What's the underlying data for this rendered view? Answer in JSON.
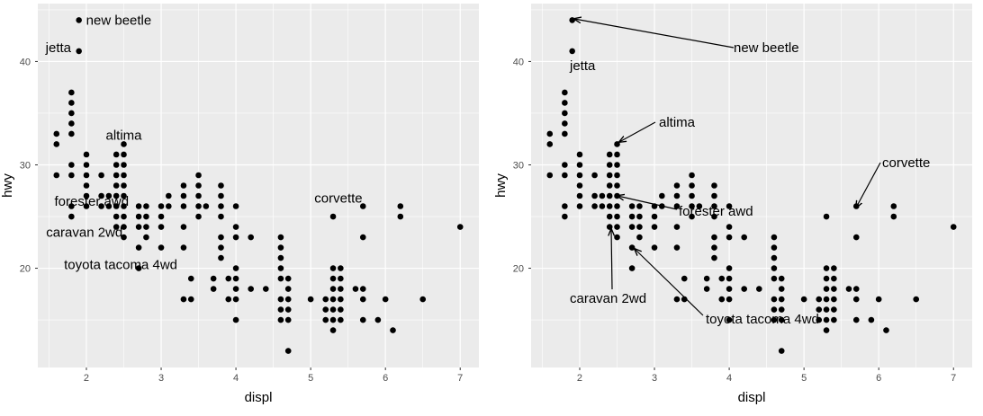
{
  "colors": {
    "panel_background": "#EBEBEB",
    "gridline_major": "#FFFFFF",
    "point": "#000000",
    "tick_label": "#4D4D4D",
    "arrow": "#000000"
  },
  "chart_data": [
    {
      "type": "scatter",
      "title": "",
      "xlabel": "displ",
      "ylabel": "hwy",
      "xlim": [
        1.35,
        7.25
      ],
      "ylim": [
        10.4,
        45.6
      ],
      "xticks": [
        "2",
        "3",
        "4",
        "5",
        "6",
        "7"
      ],
      "yticks": [
        "20",
        "30",
        "40"
      ],
      "grid": true,
      "legend": "none",
      "points": [
        [
          1.6,
          33
        ],
        [
          1.6,
          32
        ],
        [
          1.6,
          29
        ],
        [
          1.8,
          29
        ],
        [
          1.8,
          33
        ],
        [
          1.8,
          34
        ],
        [
          1.8,
          35
        ],
        [
          1.8,
          36
        ],
        [
          1.8,
          37
        ],
        [
          1.8,
          30
        ],
        [
          1.8,
          26
        ],
        [
          1.8,
          25
        ],
        [
          1.9,
          44
        ],
        [
          1.9,
          41
        ],
        [
          2.0,
          31
        ],
        [
          2.0,
          30
        ],
        [
          2.0,
          29
        ],
        [
          2.0,
          28
        ],
        [
          2.0,
          27
        ],
        [
          2.0,
          26
        ],
        [
          2.2,
          29
        ],
        [
          2.2,
          27
        ],
        [
          2.2,
          26
        ],
        [
          2.3,
          27
        ],
        [
          2.3,
          26
        ],
        [
          2.4,
          31
        ],
        [
          2.4,
          30
        ],
        [
          2.4,
          29
        ],
        [
          2.4,
          28
        ],
        [
          2.4,
          27
        ],
        [
          2.4,
          26
        ],
        [
          2.4,
          25
        ],
        [
          2.4,
          24
        ],
        [
          2.5,
          32
        ],
        [
          2.5,
          31
        ],
        [
          2.5,
          30
        ],
        [
          2.5,
          29
        ],
        [
          2.5,
          28
        ],
        [
          2.5,
          27
        ],
        [
          2.5,
          26
        ],
        [
          2.5,
          25
        ],
        [
          2.5,
          24
        ],
        [
          2.5,
          23
        ],
        [
          2.7,
          26
        ],
        [
          2.7,
          25
        ],
        [
          2.7,
          24
        ],
        [
          2.7,
          22
        ],
        [
          2.7,
          20
        ],
        [
          2.8,
          26
        ],
        [
          2.8,
          25
        ],
        [
          2.8,
          24
        ],
        [
          2.8,
          23
        ],
        [
          3.0,
          26
        ],
        [
          3.0,
          25
        ],
        [
          3.0,
          24
        ],
        [
          3.0,
          22
        ],
        [
          3.1,
          27
        ],
        [
          3.1,
          26
        ],
        [
          3.3,
          28
        ],
        [
          3.3,
          27
        ],
        [
          3.3,
          26
        ],
        [
          3.3,
          24
        ],
        [
          3.3,
          22
        ],
        [
          3.3,
          17
        ],
        [
          3.4,
          19
        ],
        [
          3.4,
          17
        ],
        [
          3.5,
          29
        ],
        [
          3.5,
          28
        ],
        [
          3.5,
          27
        ],
        [
          3.5,
          26
        ],
        [
          3.5,
          25
        ],
        [
          3.6,
          26
        ],
        [
          3.7,
          19
        ],
        [
          3.7,
          18
        ],
        [
          3.8,
          28
        ],
        [
          3.8,
          27
        ],
        [
          3.8,
          26
        ],
        [
          3.8,
          25
        ],
        [
          3.8,
          23
        ],
        [
          3.8,
          22
        ],
        [
          3.8,
          21
        ],
        [
          3.9,
          19
        ],
        [
          3.9,
          17
        ],
        [
          4.0,
          26
        ],
        [
          4.0,
          24
        ],
        [
          4.0,
          23
        ],
        [
          4.0,
          20
        ],
        [
          4.0,
          19
        ],
        [
          4.0,
          18
        ],
        [
          4.0,
          17
        ],
        [
          4.0,
          15
        ],
        [
          4.2,
          23
        ],
        [
          4.2,
          18
        ],
        [
          4.4,
          18
        ],
        [
          4.6,
          23
        ],
        [
          4.6,
          22
        ],
        [
          4.6,
          21
        ],
        [
          4.6,
          20
        ],
        [
          4.6,
          19
        ],
        [
          4.6,
          17
        ],
        [
          4.6,
          16
        ],
        [
          4.6,
          15
        ],
        [
          4.7,
          19
        ],
        [
          4.7,
          18
        ],
        [
          4.7,
          17
        ],
        [
          4.7,
          16
        ],
        [
          4.7,
          15
        ],
        [
          4.7,
          12
        ],
        [
          5.0,
          17
        ],
        [
          5.2,
          17
        ],
        [
          5.2,
          16
        ],
        [
          5.2,
          15
        ],
        [
          5.3,
          25
        ],
        [
          5.3,
          20
        ],
        [
          5.3,
          19
        ],
        [
          5.3,
          18
        ],
        [
          5.3,
          17
        ],
        [
          5.3,
          16
        ],
        [
          5.3,
          15
        ],
        [
          5.3,
          14
        ],
        [
          5.4,
          20
        ],
        [
          5.4,
          19
        ],
        [
          5.4,
          18
        ],
        [
          5.4,
          17
        ],
        [
          5.4,
          16
        ],
        [
          5.4,
          15
        ],
        [
          5.6,
          18
        ],
        [
          5.7,
          26
        ],
        [
          5.7,
          23
        ],
        [
          5.7,
          18
        ],
        [
          5.7,
          17
        ],
        [
          5.7,
          15
        ],
        [
          5.9,
          15
        ],
        [
          6.0,
          17
        ],
        [
          6.1,
          14
        ],
        [
          6.2,
          26
        ],
        [
          6.2,
          25
        ],
        [
          6.5,
          17
        ],
        [
          7.0,
          24
        ]
      ],
      "labels": [
        {
          "text": "new beetle",
          "x": 1.9,
          "y": 44
        },
        {
          "text": "jetta",
          "x": 1.9,
          "y": 41
        },
        {
          "text": "altima",
          "x": 2.5,
          "y": 32
        },
        {
          "text": "forester awd",
          "x": 2.5,
          "y": 27
        },
        {
          "text": "caravan 2wd",
          "x": 2.4,
          "y": 24
        },
        {
          "text": "toyota tacoma 4wd",
          "x": 2.7,
          "y": 20
        },
        {
          "text": "corvette",
          "x": 5.7,
          "y": 26
        }
      ]
    },
    {
      "type": "scatter",
      "title": "",
      "xlabel": "displ",
      "ylabel": "hwy",
      "xlim": [
        1.35,
        7.25
      ],
      "ylim": [
        10.4,
        45.6
      ],
      "xticks": [
        "2",
        "3",
        "4",
        "5",
        "6",
        "7"
      ],
      "yticks": [
        "20",
        "30",
        "40"
      ],
      "grid": true,
      "legend": "none",
      "points": "same as first chart",
      "labels": [
        {
          "text": "new beetle",
          "x": 1.9,
          "y": 44
        },
        {
          "text": "jetta",
          "x": 1.9,
          "y": 41
        },
        {
          "text": "altima",
          "x": 2.5,
          "y": 32
        },
        {
          "text": "forester awd",
          "x": 2.5,
          "y": 27
        },
        {
          "text": "caravan 2wd",
          "x": 2.4,
          "y": 24
        },
        {
          "text": "toyota tacoma 4wd",
          "x": 2.7,
          "y": 20
        },
        {
          "text": "corvette",
          "x": 5.7,
          "y": 26
        }
      ]
    }
  ]
}
